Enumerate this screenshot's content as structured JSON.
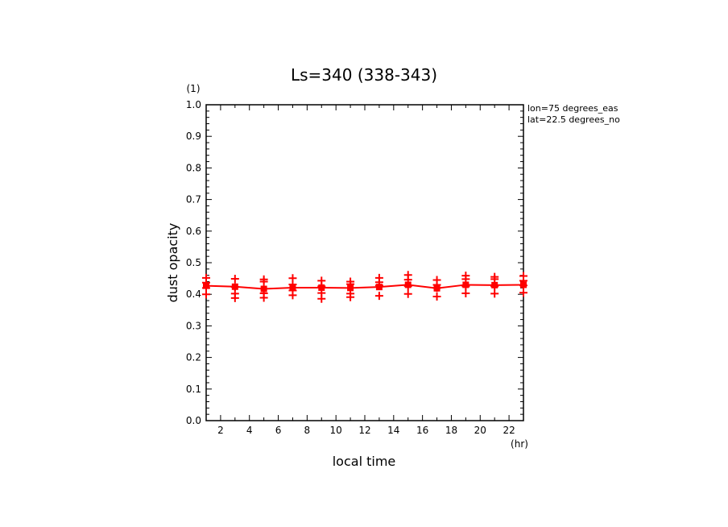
{
  "chart_data": {
    "type": "line",
    "title": "Ls=340 (338-343)",
    "xlabel": "local time",
    "ylabel": "dust opacity",
    "x_unit": "(hr)",
    "y_unit": "(1)",
    "xlim": [
      1,
      23
    ],
    "ylim": [
      0.0,
      1.0
    ],
    "x_ticks": [
      2,
      4,
      6,
      8,
      10,
      12,
      14,
      16,
      18,
      20,
      22
    ],
    "y_ticks": [
      0.0,
      0.1,
      0.2,
      0.3,
      0.4,
      0.5,
      0.6,
      0.7,
      0.8,
      0.9,
      1.0
    ],
    "y_tick_labels": [
      "0.0",
      "0.1",
      "0.2",
      "0.3",
      "0.4",
      "0.5",
      "0.6",
      "0.7",
      "0.8",
      "0.9",
      "1.0"
    ],
    "annotations": [
      "lon=75 degrees_eas",
      "lat=22.5 degrees_no"
    ],
    "grid": false,
    "color": "#ff0000",
    "series": [
      {
        "x": [
          1,
          3,
          5,
          7,
          9,
          11,
          13,
          15,
          17,
          19,
          21,
          23
        ],
        "y": [
          0.427,
          0.424,
          0.417,
          0.421,
          0.421,
          0.42,
          0.423,
          0.43,
          0.419,
          0.43,
          0.429,
          0.43
        ]
      }
    ],
    "scatter": {
      "x": [
        1,
        1,
        1,
        1,
        3,
        3,
        3,
        3,
        5,
        5,
        5,
        5,
        7,
        7,
        7,
        7,
        9,
        9,
        9,
        9,
        11,
        11,
        11,
        11,
        13,
        13,
        13,
        13,
        15,
        15,
        15,
        15,
        17,
        17,
        17,
        17,
        19,
        19,
        19,
        19,
        21,
        21,
        21,
        21,
        23,
        23,
        23,
        23
      ],
      "y": [
        0.452,
        0.437,
        0.42,
        0.4,
        0.449,
        0.423,
        0.402,
        0.388,
        0.447,
        0.44,
        0.403,
        0.389,
        0.451,
        0.431,
        0.412,
        0.397,
        0.443,
        0.425,
        0.404,
        0.386,
        0.44,
        0.432,
        0.402,
        0.391,
        0.452,
        0.438,
        0.428,
        0.395,
        0.461,
        0.446,
        0.426,
        0.401,
        0.445,
        0.43,
        0.42,
        0.393,
        0.459,
        0.448,
        0.425,
        0.403,
        0.455,
        0.448,
        0.425,
        0.402,
        0.458,
        0.443,
        0.428,
        0.405
      ]
    }
  }
}
